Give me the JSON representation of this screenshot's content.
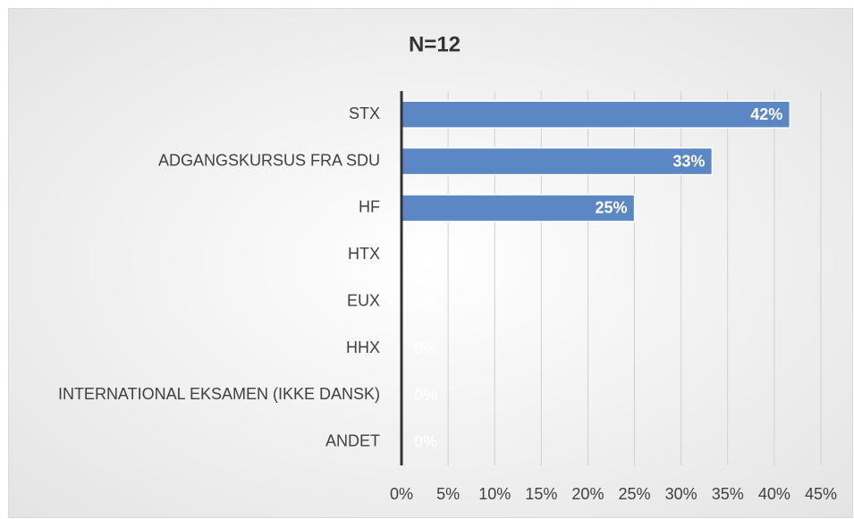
{
  "chart_data": {
    "type": "bar",
    "orientation": "horizontal",
    "title": "N=12",
    "categories": [
      "STX",
      "ADGANGSKURSUS FRA SDU",
      "HF",
      "HTX",
      "EUX",
      "HHX",
      "INTERNATIONAL EKSAMEN (IKKE DANSK)",
      "ANDET"
    ],
    "values": [
      41.67,
      33.33,
      25,
      0,
      0,
      0,
      0,
      0
    ],
    "value_labels": [
      "42%",
      "33%",
      "25%",
      "0%",
      "0%",
      "0%",
      "0%",
      "0%"
    ],
    "color": "#5b87c5",
    "xlim": [
      0,
      45
    ],
    "xticks": [
      {
        "value": 0,
        "label": "0%"
      },
      {
        "value": 5,
        "label": "5%"
      },
      {
        "value": 10,
        "label": "10%"
      },
      {
        "value": 15,
        "label": "15%"
      },
      {
        "value": 20,
        "label": "20%"
      },
      {
        "value": 25,
        "label": "25%"
      },
      {
        "value": 30,
        "label": "30%"
      },
      {
        "value": 35,
        "label": "35%"
      },
      {
        "value": 40,
        "label": "40%"
      },
      {
        "value": 45,
        "label": "45%"
      }
    ],
    "grid": true
  }
}
